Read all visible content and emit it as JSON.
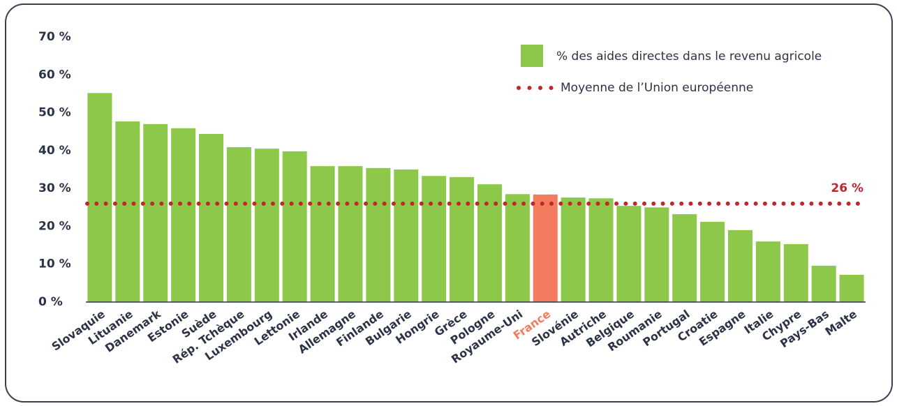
{
  "chart_data": {
    "type": "bar",
    "categories": [
      "Slovaquie",
      "Lituanie",
      "Danemark",
      "Estonie",
      "Suède",
      "Rép. Tchèque",
      "Luxembourg",
      "Lettonie",
      "Irlande",
      "Allemagne",
      "Finlande",
      "Bulgarie",
      "Hongrie",
      "Grèce",
      "Pologne",
      "Royaume-Uni",
      "France",
      "Slovénie",
      "Autriche",
      "Belgique",
      "Roumanie",
      "Portugal",
      "Croatie",
      "Espagne",
      "Italie",
      "Chypre",
      "Pays-Bas",
      "Malte"
    ],
    "series": [
      {
        "name": "% des aides directes dans le revenu agricole",
        "color": "#8dc84b",
        "values": [
          55.2,
          47.7,
          47,
          45.9,
          44.4,
          40.9,
          40.5,
          39.8,
          35.9,
          35.9,
          35.4,
          35,
          33.3,
          33,
          31.1,
          28.5,
          28.4,
          27.6,
          27.4,
          25.4,
          25,
          23.2,
          21.2,
          19,
          16,
          15.3,
          9.6,
          7.2
        ],
        "bar_colors": [
          "#8dc84b",
          "#8dc84b",
          "#8dc84b",
          "#8dc84b",
          "#8dc84b",
          "#8dc84b",
          "#8dc84b",
          "#8dc84b",
          "#8dc84b",
          "#8dc84b",
          "#8dc84b",
          "#8dc84b",
          "#8dc84b",
          "#8dc84b",
          "#8dc84b",
          "#8dc84b",
          "#f47c5e",
          "#8dc84b",
          "#8dc84b",
          "#8dc84b",
          "#8dc84b",
          "#8dc84b",
          "#8dc84b",
          "#8dc84b",
          "#8dc84b",
          "#8dc84b",
          "#8dc84b",
          "#8dc84b"
        ]
      }
    ],
    "average": {
      "name": "Moyenne de l’Union européenne",
      "value": 26,
      "label": "26 %",
      "color": "#c0272d"
    },
    "ylim": [
      0,
      70
    ],
    "yticks": [
      {
        "value": 0,
        "label": "0 %"
      },
      {
        "value": 10,
        "label": "10 %"
      },
      {
        "value": 20,
        "label": "20 %"
      },
      {
        "value": 30,
        "label": "30 %"
      },
      {
        "value": 40,
        "label": "40 %"
      },
      {
        "value": 50,
        "label": "50 %"
      },
      {
        "value": 60,
        "label": "60 %"
      },
      {
        "value": 70,
        "label": "70 %"
      }
    ],
    "grid": false,
    "legend": "top-right"
  }
}
